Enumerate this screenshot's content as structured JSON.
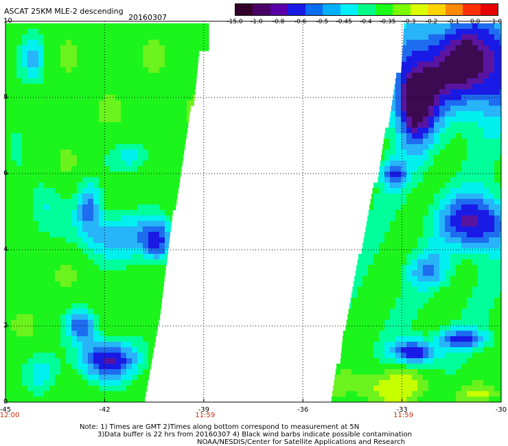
{
  "header": {
    "title": "ASCAT 25KM MLE-2 descending",
    "date": "20160307"
  },
  "colorbar": {
    "colors": [
      "#33002a",
      "#4a0066",
      "#5a00a8",
      "#1a1ae6",
      "#0a6cf0",
      "#00b0ff",
      "#00f0f8",
      "#00ff88",
      "#1aff1a",
      "#7aff00",
      "#dcff00",
      "#ffd400",
      "#ff8a00",
      "#ff3000",
      "#e60000"
    ],
    "labels": [
      "-15.0",
      "-1.0",
      "-0.8",
      "-0.6",
      "-0.5",
      "-0.45",
      "-0.4",
      "-0.35",
      "-0.3",
      "-0.2",
      "-0.1",
      "0.0",
      "1.0"
    ]
  },
  "axes": {
    "y_ticks": [
      "0",
      "2",
      "4",
      "6",
      "8",
      "10"
    ],
    "x_ticks": [
      "-45",
      "-42",
      "-39",
      "-36",
      "-33",
      "-30"
    ],
    "time_labels": [
      "12:00",
      "11:59",
      "11:59"
    ]
  },
  "notes": {
    "line1": "Note: 1) Times are GMT 2)Times along bottom correspond to measurement at 5N",
    "line2": "3)Data buffer is 22 hrs from 20160307 4) Black wind barbs indicate possible contamination",
    "line3": "NOAA/NESDIS/Center for Satellite Applications and Research"
  },
  "map_extent": {
    "lon": [
      -45,
      -30
    ],
    "lat": [
      0,
      10
    ]
  }
}
